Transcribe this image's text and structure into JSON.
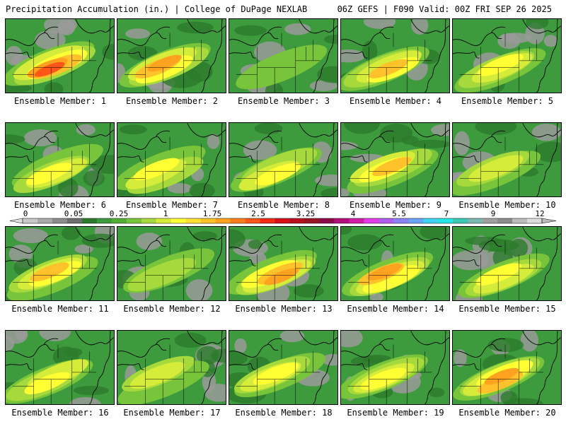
{
  "header": {
    "left": "Precipitation Accumulation (in.) | College of DuPage NEXLAB",
    "right": "06Z GEFS | F090 Valid: 00Z FRI SEP 26 2025"
  },
  "panels": [
    {
      "label": "Ensemble Member: 1",
      "intensity": 0.85
    },
    {
      "label": "Ensemble Member: 2",
      "intensity": 0.75
    },
    {
      "label": "Ensemble Member: 3",
      "intensity": 0.25
    },
    {
      "label": "Ensemble Member: 4",
      "intensity": 0.7
    },
    {
      "label": "Ensemble Member: 5",
      "intensity": 0.6
    },
    {
      "label": "Ensemble Member: 6",
      "intensity": 0.55
    },
    {
      "label": "Ensemble Member: 7",
      "intensity": 0.5
    },
    {
      "label": "Ensemble Member: 8",
      "intensity": 0.6
    },
    {
      "label": "Ensemble Member: 9",
      "intensity": 0.65
    },
    {
      "label": "Ensemble Member: 10",
      "intensity": 0.45
    },
    {
      "label": "Ensemble Member: 11",
      "intensity": 0.7
    },
    {
      "label": "Ensemble Member: 12",
      "intensity": 0.3
    },
    {
      "label": "Ensemble Member: 13",
      "intensity": 0.8
    },
    {
      "label": "Ensemble Member: 14",
      "intensity": 0.8
    },
    {
      "label": "Ensemble Member: 15",
      "intensity": 0.5
    },
    {
      "label": "Ensemble Member: 16",
      "intensity": 0.6
    },
    {
      "label": "Ensemble Member: 17",
      "intensity": 0.45
    },
    {
      "label": "Ensemble Member: 18",
      "intensity": 0.5
    },
    {
      "label": "Ensemble Member: 19",
      "intensity": 0.6
    },
    {
      "label": "Ensemble Member: 20",
      "intensity": 0.75
    }
  ],
  "colorbar": {
    "tick_labels": [
      "0",
      "0.05",
      "0.25",
      "1",
      "1.75",
      "2.5",
      "3.25",
      "4",
      "5.5",
      "7",
      "9",
      "12"
    ],
    "colors": [
      "#c8c8c8",
      "#aaaaaa",
      "#8c8c8c",
      "#6e6e6e",
      "#2c7a2c",
      "#3d9a3d",
      "#52ad37",
      "#78c43a",
      "#a6d93c",
      "#d6ec3a",
      "#ffff33",
      "#ffe033",
      "#ffc22a",
      "#ffa21f",
      "#ff7d1a",
      "#ff5719",
      "#f22a16",
      "#d81018",
      "#b80f1e",
      "#981524",
      "#8a0a4a",
      "#b0107a",
      "#d21ea6",
      "#e43ce4",
      "#b35cf0",
      "#8a82f5",
      "#6aa4f5",
      "#40d2f5",
      "#29e6e6",
      "#3cc8b4",
      "#7ab8b0",
      "#a0a0a0",
      "#8c8c8c",
      "#bcbcbc",
      "#dcdcdc"
    ]
  },
  "map_colors": [
    "#3d9a3d",
    "#2c7a2c",
    "#78c43a",
    "#a6d93c",
    "#d6ec3a",
    "#ffff33",
    "#ffc22a",
    "#ffa21f",
    "#ff5719",
    "#f22a16"
  ],
  "map_background_gray": "#9a9a9a"
}
